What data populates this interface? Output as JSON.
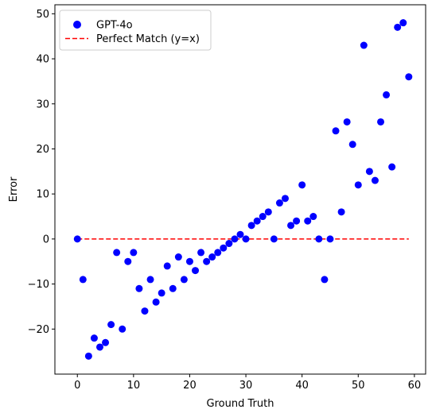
{
  "chart_data": {
    "type": "scatter",
    "xlabel": "Ground Truth",
    "ylabel": "Error",
    "xlim": [
      -4,
      62
    ],
    "ylim": [
      -30,
      52
    ],
    "xticks": [
      0,
      10,
      20,
      30,
      40,
      50,
      60
    ],
    "yticks": [
      -20,
      -10,
      0,
      10,
      20,
      30,
      40,
      50
    ],
    "grid": false,
    "legend_position": "top-left",
    "series": [
      {
        "name": "GPT-4o",
        "kind": "scatter",
        "color": "#0000ff",
        "x": [
          0,
          1,
          2,
          3,
          4,
          5,
          6,
          7,
          8,
          9,
          10,
          11,
          12,
          13,
          14,
          15,
          16,
          17,
          18,
          19,
          20,
          21,
          22,
          23,
          24,
          25,
          26,
          27,
          28,
          29,
          30,
          31,
          32,
          33,
          34,
          35,
          36,
          37,
          38,
          39,
          40,
          41,
          42,
          43,
          44,
          45,
          46,
          47,
          48,
          49,
          50,
          51,
          52,
          53,
          54,
          55,
          56,
          57,
          58,
          59
        ],
        "y": [
          0,
          -9,
          -26,
          -22,
          -24,
          -23,
          -19,
          -3,
          -20,
          -5,
          -3,
          -11,
          -16,
          -9,
          -14,
          -12,
          -6,
          -11,
          -4,
          -9,
          -5,
          -7,
          -3,
          -5,
          -4,
          -3,
          -2,
          -1,
          0,
          1,
          0,
          3,
          4,
          5,
          6,
          0,
          8,
          9,
          3,
          4,
          12,
          4,
          5,
          0,
          -9,
          0,
          24,
          6,
          26,
          21,
          12,
          43,
          15,
          13,
          26,
          32,
          16,
          47,
          48,
          36
        ]
      },
      {
        "name": "Perfect Match (y=x)",
        "kind": "line",
        "style": "dashed",
        "color": "#ff0000",
        "x": [
          0,
          59
        ],
        "y": [
          0,
          0
        ]
      }
    ]
  }
}
